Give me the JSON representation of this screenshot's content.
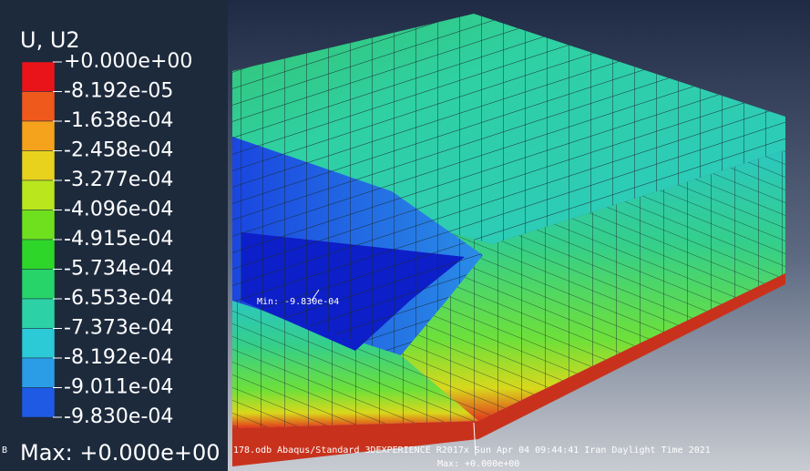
{
  "legend": {
    "title": "U, U2",
    "labels": [
      "+0.000e+00",
      "-8.192e-05",
      "-1.638e-04",
      "-2.458e-04",
      "-3.277e-04",
      "-4.096e-04",
      "-4.915e-04",
      "-5.734e-04",
      "-6.553e-04",
      "-7.373e-04",
      "-8.192e-04",
      "-9.011e-04",
      "-9.830e-04"
    ],
    "max": "Max: +0.000e+00"
  },
  "viewport": {
    "min_label": "Min: -9.830e-04",
    "max_label": "Max: +0.000e+00",
    "info_left": "B",
    "info": "178.odb    Abaqus/Standard 3DEXPERIENCE R2017x    Sun Apr 04 09:44:41 Iran Daylight Time 2021"
  }
}
